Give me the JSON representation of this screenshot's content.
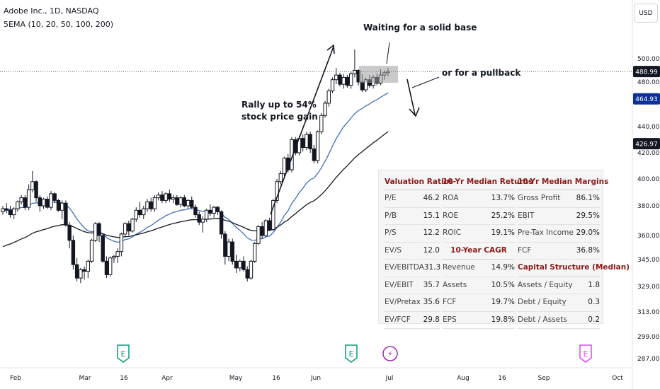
{
  "header": {
    "title": "Adobe Inc., 1D, NASDAQ",
    "indicator": "5EMA (10, 20, 50, 100, 200)",
    "currency": "USD"
  },
  "annotations": {
    "rally": "Rally up to 54%\nstock price gain",
    "waiting": "Waiting for a solid base",
    "pullback": "or for a pullback"
  },
  "ratios_table": {
    "valuation": {
      "header": "Valuation Ratios",
      "rows": [
        {
          "label": "P/E",
          "value": "46.2"
        },
        {
          "label": "P/B",
          "value": "15.1"
        },
        {
          "label": "P/S",
          "value": "12.2"
        },
        {
          "label": "EV/S",
          "value": "12.0"
        },
        {
          "label": "EV/EBITDA",
          "value": "31.3"
        },
        {
          "label": "EV/EBIT",
          "value": "35.7"
        },
        {
          "label": "EV/Pretax",
          "value": "35.6"
        },
        {
          "label": "EV/FCF",
          "value": "29.8"
        }
      ]
    },
    "returns": {
      "header": "10-Yr Median Returns",
      "rows": [
        {
          "label": "ROA",
          "value": "13.7%"
        },
        {
          "label": "ROE",
          "value": "25.2%"
        },
        {
          "label": "ROIC",
          "value": "19.1%"
        }
      ]
    },
    "cagr": {
      "header": "10-Year CAGR",
      "rows": [
        {
          "label": "Revenue",
          "value": "14.9%"
        },
        {
          "label": "Assets",
          "value": "10.5%"
        },
        {
          "label": "FCF",
          "value": "19.7%"
        },
        {
          "label": "EPS",
          "value": "19.8%"
        }
      ]
    },
    "margins": {
      "header": "10-Yr Median Margins",
      "rows": [
        {
          "label": "Gross Profit",
          "value": "86.1%"
        },
        {
          "label": "EBIT",
          "value": "29.5%"
        },
        {
          "label": "Pre-Tax Income",
          "value": "29.0%"
        },
        {
          "label": "FCF",
          "value": "36.8%"
        }
      ]
    },
    "capital": {
      "header": "Capital Structure (Median)",
      "rows": [
        {
          "label": "Assets / Equity",
          "value": "1.8"
        },
        {
          "label": "Debt / Equity",
          "value": "0.3"
        },
        {
          "label": "Debt / Assets",
          "value": "0.2"
        }
      ]
    }
  },
  "chart_data": {
    "type": "candlestick",
    "x_ticks": [
      "Feb",
      "Mar",
      "16",
      "Apr",
      "May",
      "16",
      "Jun",
      "Jul",
      "Aug",
      "16",
      "Sep",
      "Oct"
    ],
    "y_ticks": [
      "500.00",
      "480.00",
      "440.00",
      "420.00",
      "400.00",
      "380.00",
      "360.00",
      "345.00",
      "329.00",
      "313.00",
      "299.00",
      "287.00"
    ],
    "price_labels": [
      {
        "value": "488.99",
        "style": "dark"
      },
      {
        "value": "464.93",
        "style": "blue"
      },
      {
        "value": "426.97",
        "style": "dark"
      }
    ],
    "events": [
      {
        "label": "E",
        "kind": "earnings",
        "color": "#089981",
        "date": "Mar 16"
      },
      {
        "label": "E",
        "kind": "earnings",
        "color": "#089981",
        "date": "Jun 16"
      },
      {
        "label": "⚡",
        "kind": "dividend",
        "color": "#9c27b0",
        "date": "Jul"
      },
      {
        "label": "E",
        "kind": "earnings-upcoming",
        "color": "#e040fb",
        "date": "Sep 16"
      }
    ],
    "colors": {
      "ema_fast": "#3f6fb8",
      "ema_slow": "#131722",
      "candle": "#131722",
      "price_box_blue": "#0c3299"
    },
    "ohlc": [
      [
        376,
        380,
        374,
        378
      ],
      [
        378,
        382,
        375,
        377
      ],
      [
        377,
        380,
        372,
        374
      ],
      [
        374,
        379,
        371,
        378
      ],
      [
        378,
        384,
        376,
        383
      ],
      [
        383,
        388,
        381,
        386
      ],
      [
        386,
        388,
        377,
        379
      ],
      [
        379,
        396,
        377,
        392
      ],
      [
        392,
        406,
        390,
        398
      ],
      [
        398,
        399,
        383,
        386
      ],
      [
        386,
        388,
        376,
        380
      ],
      [
        380,
        386,
        378,
        385
      ],
      [
        385,
        387,
        378,
        379
      ],
      [
        379,
        391,
        377,
        389
      ],
      [
        389,
        390,
        382,
        384
      ],
      [
        384,
        385,
        376,
        377
      ],
      [
        377,
        384,
        371,
        382
      ],
      [
        382,
        384,
        366,
        367
      ],
      [
        367,
        369,
        352,
        357
      ],
      [
        357,
        360,
        339,
        342
      ],
      [
        342,
        346,
        332,
        334
      ],
      [
        334,
        340,
        331,
        339
      ],
      [
        339,
        341,
        333,
        338
      ],
      [
        338,
        345,
        334,
        344
      ],
      [
        344,
        358,
        343,
        357
      ],
      [
        357,
        369,
        356,
        368
      ],
      [
        368,
        369,
        356,
        360
      ],
      [
        360,
        361,
        343,
        344
      ],
      [
        344,
        347,
        334,
        336
      ],
      [
        336,
        347,
        335,
        346
      ],
      [
        346,
        348,
        343,
        347
      ],
      [
        347,
        352,
        343,
        350
      ],
      [
        350,
        362,
        347,
        361
      ],
      [
        361,
        369,
        359,
        368
      ],
      [
        368,
        370,
        360,
        363
      ],
      [
        363,
        372,
        362,
        371
      ],
      [
        371,
        379,
        369,
        377
      ],
      [
        377,
        383,
        372,
        374
      ],
      [
        374,
        380,
        371,
        378
      ],
      [
        378,
        385,
        376,
        383
      ],
      [
        383,
        386,
        376,
        378
      ],
      [
        378,
        388,
        376,
        386
      ],
      [
        386,
        390,
        384,
        388
      ],
      [
        388,
        391,
        382,
        384
      ],
      [
        384,
        390,
        382,
        389
      ],
      [
        389,
        392,
        383,
        385
      ],
      [
        385,
        388,
        382,
        386
      ],
      [
        386,
        388,
        380,
        381
      ],
      [
        381,
        387,
        379,
        386
      ],
      [
        386,
        388,
        379,
        380
      ],
      [
        380,
        385,
        378,
        384
      ],
      [
        384,
        387,
        378,
        379
      ],
      [
        379,
        381,
        372,
        374
      ],
      [
        374,
        376,
        367,
        369
      ],
      [
        369,
        373,
        362,
        371
      ],
      [
        371,
        378,
        369,
        377
      ],
      [
        377,
        381,
        373,
        375
      ],
      [
        375,
        380,
        372,
        379
      ],
      [
        379,
        380,
        374,
        376
      ],
      [
        376,
        377,
        358,
        361
      ],
      [
        361,
        363,
        342,
        347
      ],
      [
        347,
        358,
        344,
        356
      ],
      [
        356,
        358,
        342,
        344
      ],
      [
        344,
        348,
        337,
        340
      ],
      [
        340,
        345,
        338,
        344
      ],
      [
        344,
        347,
        338,
        339
      ],
      [
        339,
        341,
        332,
        334
      ],
      [
        334,
        345,
        333,
        344
      ],
      [
        344,
        356,
        343,
        355
      ],
      [
        355,
        367,
        354,
        366
      ],
      [
        366,
        369,
        358,
        360
      ],
      [
        360,
        371,
        359,
        370
      ],
      [
        370,
        372,
        363,
        364
      ],
      [
        364,
        385,
        363,
        384
      ],
      [
        384,
        400,
        382,
        398
      ],
      [
        398,
        406,
        396,
        404
      ],
      [
        404,
        417,
        402,
        416
      ],
      [
        416,
        419,
        405,
        407
      ],
      [
        407,
        432,
        405,
        430
      ],
      [
        430,
        432,
        418,
        420
      ],
      [
        420,
        433,
        418,
        431
      ],
      [
        431,
        434,
        421,
        424
      ],
      [
        424,
        436,
        422,
        434
      ],
      [
        434,
        436,
        420,
        423
      ],
      [
        423,
        426,
        412,
        414
      ],
      [
        414,
        437,
        412,
        436
      ],
      [
        436,
        452,
        434,
        450
      ],
      [
        450,
        463,
        448,
        461
      ],
      [
        461,
        474,
        458,
        472
      ],
      [
        472,
        484,
        470,
        482
      ],
      [
        482,
        492,
        478,
        486
      ],
      [
        486,
        488,
        476,
        478
      ],
      [
        478,
        487,
        474,
        484
      ],
      [
        484,
        486,
        475,
        477
      ],
      [
        477,
        489,
        474,
        487
      ],
      [
        487,
        508,
        484,
        490
      ],
      [
        490,
        491,
        477,
        480
      ],
      [
        480,
        487,
        471,
        473
      ],
      [
        473,
        484,
        471,
        482
      ],
      [
        482,
        486,
        475,
        477
      ],
      [
        477,
        486,
        474,
        484
      ],
      [
        484,
        487,
        477,
        479
      ],
      [
        479,
        491,
        477,
        486
      ],
      [
        486,
        490,
        482,
        488
      ],
      [
        488,
        492,
        485,
        489
      ]
    ]
  }
}
